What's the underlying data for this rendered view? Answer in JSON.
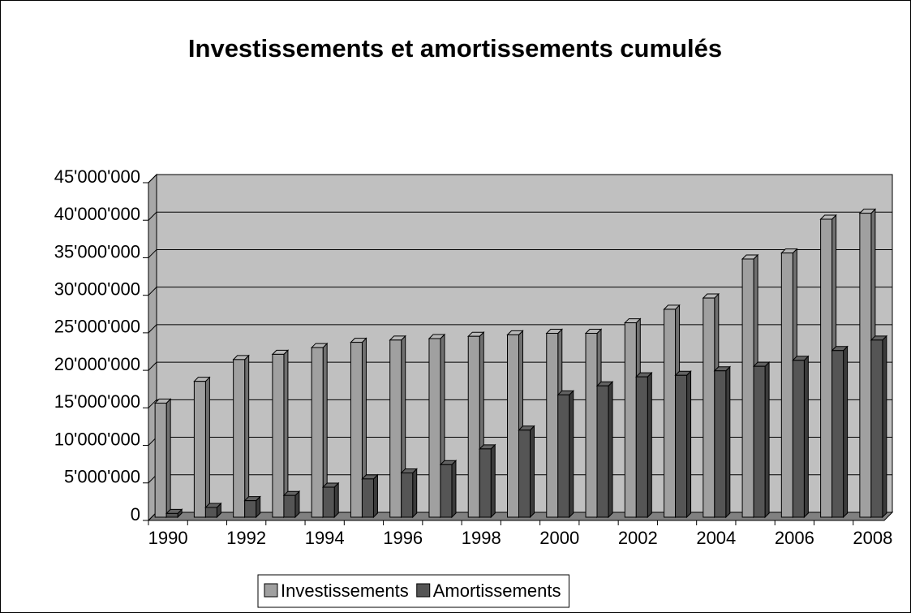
{
  "chart_data": {
    "type": "bar",
    "title": "Investissements et amortissements cumulés",
    "categories": [
      "1990",
      null,
      "1992",
      null,
      "1994",
      null,
      "1996",
      null,
      "1998",
      null,
      "2000",
      null,
      "2002",
      null,
      "2004",
      null,
      "2006",
      null,
      "2008"
    ],
    "series": [
      {
        "name": "Investissements",
        "color": "#a0a0a0",
        "values": [
          15200000,
          18100000,
          21000000,
          21700000,
          22600000,
          23300000,
          23600000,
          23800000,
          24100000,
          24300000,
          24500000,
          24500000,
          25900000,
          27700000,
          29200000,
          34400000,
          35200000,
          39700000,
          40500000
        ]
      },
      {
        "name": "Amortissements",
        "color": "#555555",
        "values": [
          500000,
          1300000,
          2200000,
          2900000,
          4000000,
          5100000,
          5900000,
          7000000,
          9100000,
          11600000,
          16300000,
          17500000,
          18700000,
          18900000,
          19500000,
          20100000,
          20900000,
          22200000,
          23600000
        ]
      }
    ],
    "ylim": [
      0,
      45000000
    ],
    "yticks": [
      0,
      {
        "value": 5000000,
        "label": "5'000'000"
      },
      {
        "value": 10000000,
        "label": "10'000'000"
      },
      {
        "value": 15000000,
        "label": "15'000'000"
      },
      {
        "value": 20000000,
        "label": "20'000'000"
      },
      {
        "value": 25000000,
        "label": "25'000'000"
      },
      {
        "value": 30000000,
        "label": "30'000'000"
      },
      {
        "value": 35000000,
        "label": "35'000'000"
      },
      {
        "value": 40000000,
        "label": "40'000'000"
      },
      {
        "value": 45000000,
        "label": "45'000'000"
      }
    ],
    "grid": true,
    "legend": "bottom"
  }
}
